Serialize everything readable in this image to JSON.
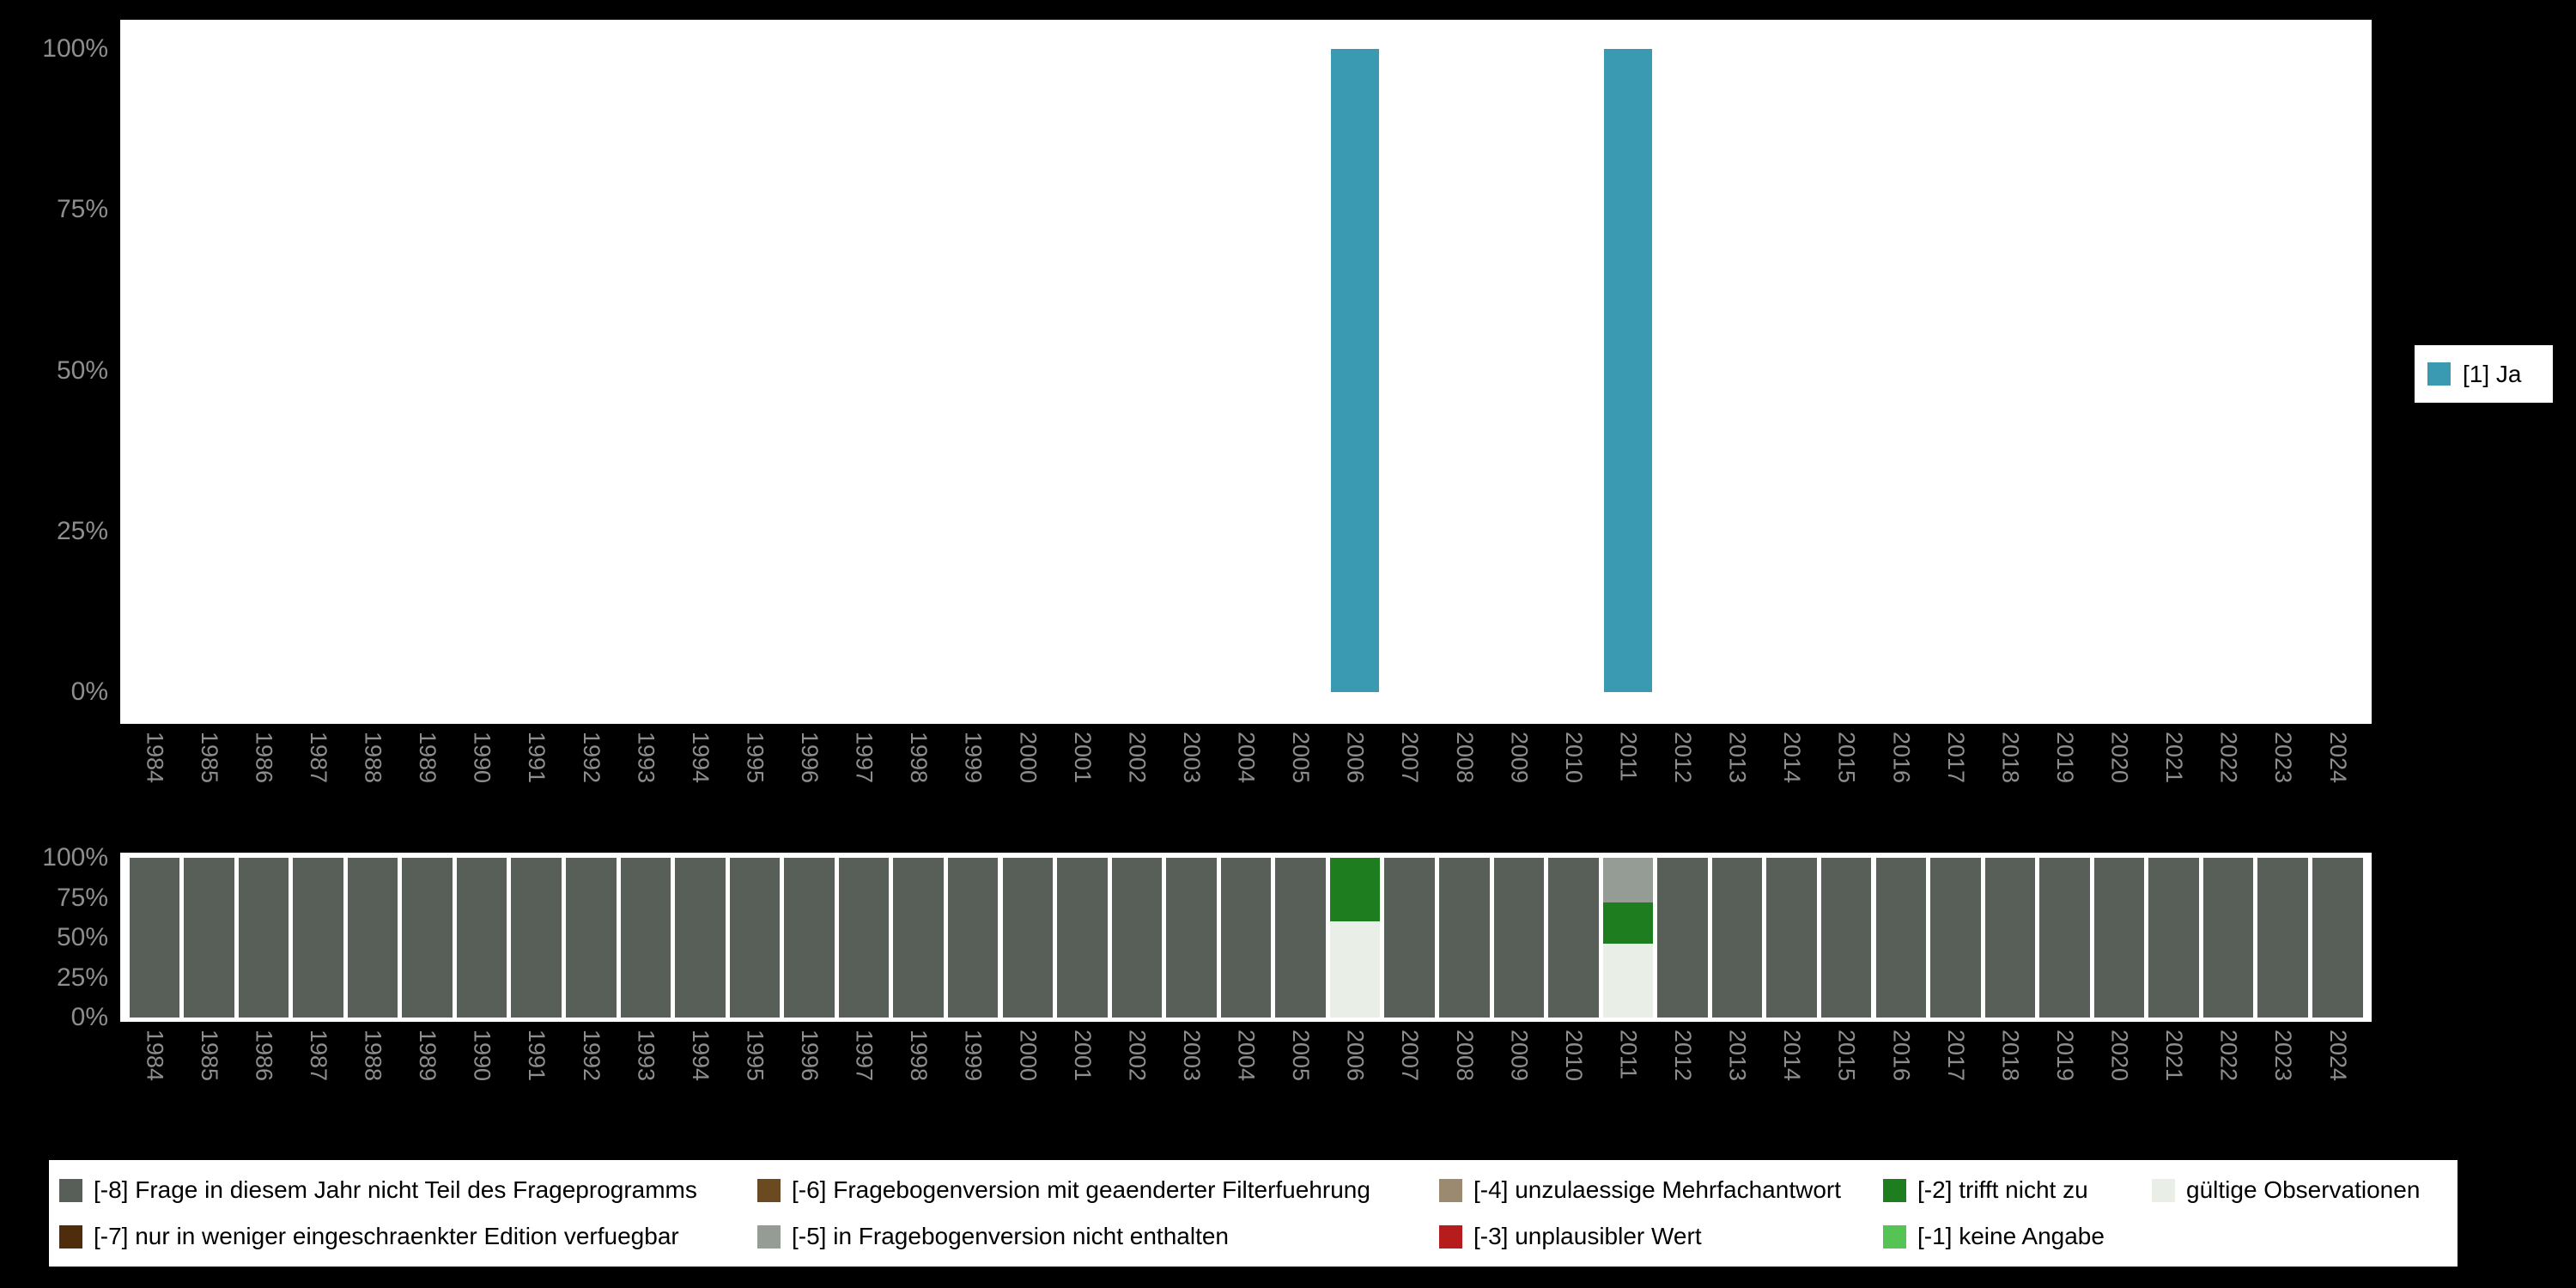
{
  "top_legend": {
    "label": "[1] Ja",
    "color": "#3a9ab1"
  },
  "axis": {
    "text_color": "#8e8e8e"
  },
  "colors": {
    "background": "#000000",
    "panel": "#ffffff"
  },
  "missing_keys": {
    "-8": {
      "label": "[-8] Frage in diesem Jahr nicht Teil des Frageprogramms",
      "color": "#575f58"
    },
    "-7": {
      "label": "[-7] nur in weniger eingeschraenkter Edition verfuegbar",
      "color": "#4e2c0c"
    },
    "-6": {
      "label": "[-6] Fragebogenversion mit geaenderter Filterfuehrung",
      "color": "#6b4a21"
    },
    "-5": {
      "label": "[-5] in Fragebogenversion nicht enthalten",
      "color": "#959c95"
    },
    "-4": {
      "label": "[-4] unzulaessige Mehrfachantwort",
      "color": "#9b8a70"
    },
    "-3": {
      "label": "[-3] unplausibler Wert",
      "color": "#b71c1c"
    },
    "-2": {
      "label": "[-2] trifft nicht zu",
      "color": "#1e7d1e"
    },
    "-1": {
      "label": "[-1] keine Angabe",
      "color": "#55c455"
    },
    "valid": {
      "label": "gültige Observationen",
      "color": "#e9eee6"
    }
  },
  "bottom_legend": {
    "columns": [
      [
        "-8",
        "-7"
      ],
      [
        "-6",
        "-5"
      ],
      [
        "-4",
        "-3"
      ],
      [
        "-2",
        "-1"
      ],
      [
        "valid"
      ]
    ]
  },
  "chart_data": [
    {
      "type": "bar",
      "name": "availability-by-year",
      "title": "",
      "xlabel": "",
      "ylabel": "",
      "ylim": [
        0,
        100
      ],
      "legend_position": "right",
      "grid": false,
      "categories": [
        "1984",
        "1985",
        "1986",
        "1987",
        "1988",
        "1989",
        "1990",
        "1991",
        "1992",
        "1993",
        "1994",
        "1995",
        "1996",
        "1997",
        "1998",
        "1999",
        "2000",
        "2001",
        "2002",
        "2003",
        "2004",
        "2005",
        "2006",
        "2007",
        "2008",
        "2009",
        "2010",
        "2011",
        "2012",
        "2013",
        "2014",
        "2015",
        "2016",
        "2017",
        "2018",
        "2019",
        "2020",
        "2021",
        "2022",
        "2023",
        "2024"
      ],
      "y_ticks": [
        {
          "label": "100%",
          "value": 100
        },
        {
          "label": "75%",
          "value": 75
        },
        {
          "label": "50%",
          "value": 50
        },
        {
          "label": "25%",
          "value": 25
        },
        {
          "label": "0%",
          "value": 0
        }
      ],
      "series": [
        {
          "name": "[1] Ja",
          "color": "#3a9ab1",
          "values": {
            "2006": 100,
            "2011": 100
          }
        }
      ]
    },
    {
      "type": "stacked-bar",
      "name": "missings-by-year",
      "title": "",
      "xlabel": "",
      "ylabel": "",
      "ylim": [
        0,
        100
      ],
      "legend_position": "bottom",
      "grid": false,
      "categories": [
        "1984",
        "1985",
        "1986",
        "1987",
        "1988",
        "1989",
        "1990",
        "1991",
        "1992",
        "1993",
        "1994",
        "1995",
        "1996",
        "1997",
        "1998",
        "1999",
        "2000",
        "2001",
        "2002",
        "2003",
        "2004",
        "2005",
        "2006",
        "2007",
        "2008",
        "2009",
        "2010",
        "2011",
        "2012",
        "2013",
        "2014",
        "2015",
        "2016",
        "2017",
        "2018",
        "2019",
        "2020",
        "2021",
        "2022",
        "2023",
        "2024"
      ],
      "y_ticks": [
        {
          "label": "100%",
          "value": 100
        },
        {
          "label": "75%",
          "value": 75
        },
        {
          "label": "50%",
          "value": 50
        },
        {
          "label": "25%",
          "value": 25
        },
        {
          "label": "0%",
          "value": 0
        }
      ],
      "default_stack": [
        {
          "key": "-8",
          "value": 100
        }
      ],
      "stacks": {
        "2006": [
          {
            "key": "valid",
            "value": 60
          },
          {
            "key": "-2",
            "value": 40
          }
        ],
        "2011": [
          {
            "key": "valid",
            "value": 46
          },
          {
            "key": "-2",
            "value": 26
          },
          {
            "key": "-5",
            "value": 28
          }
        ]
      }
    }
  ]
}
